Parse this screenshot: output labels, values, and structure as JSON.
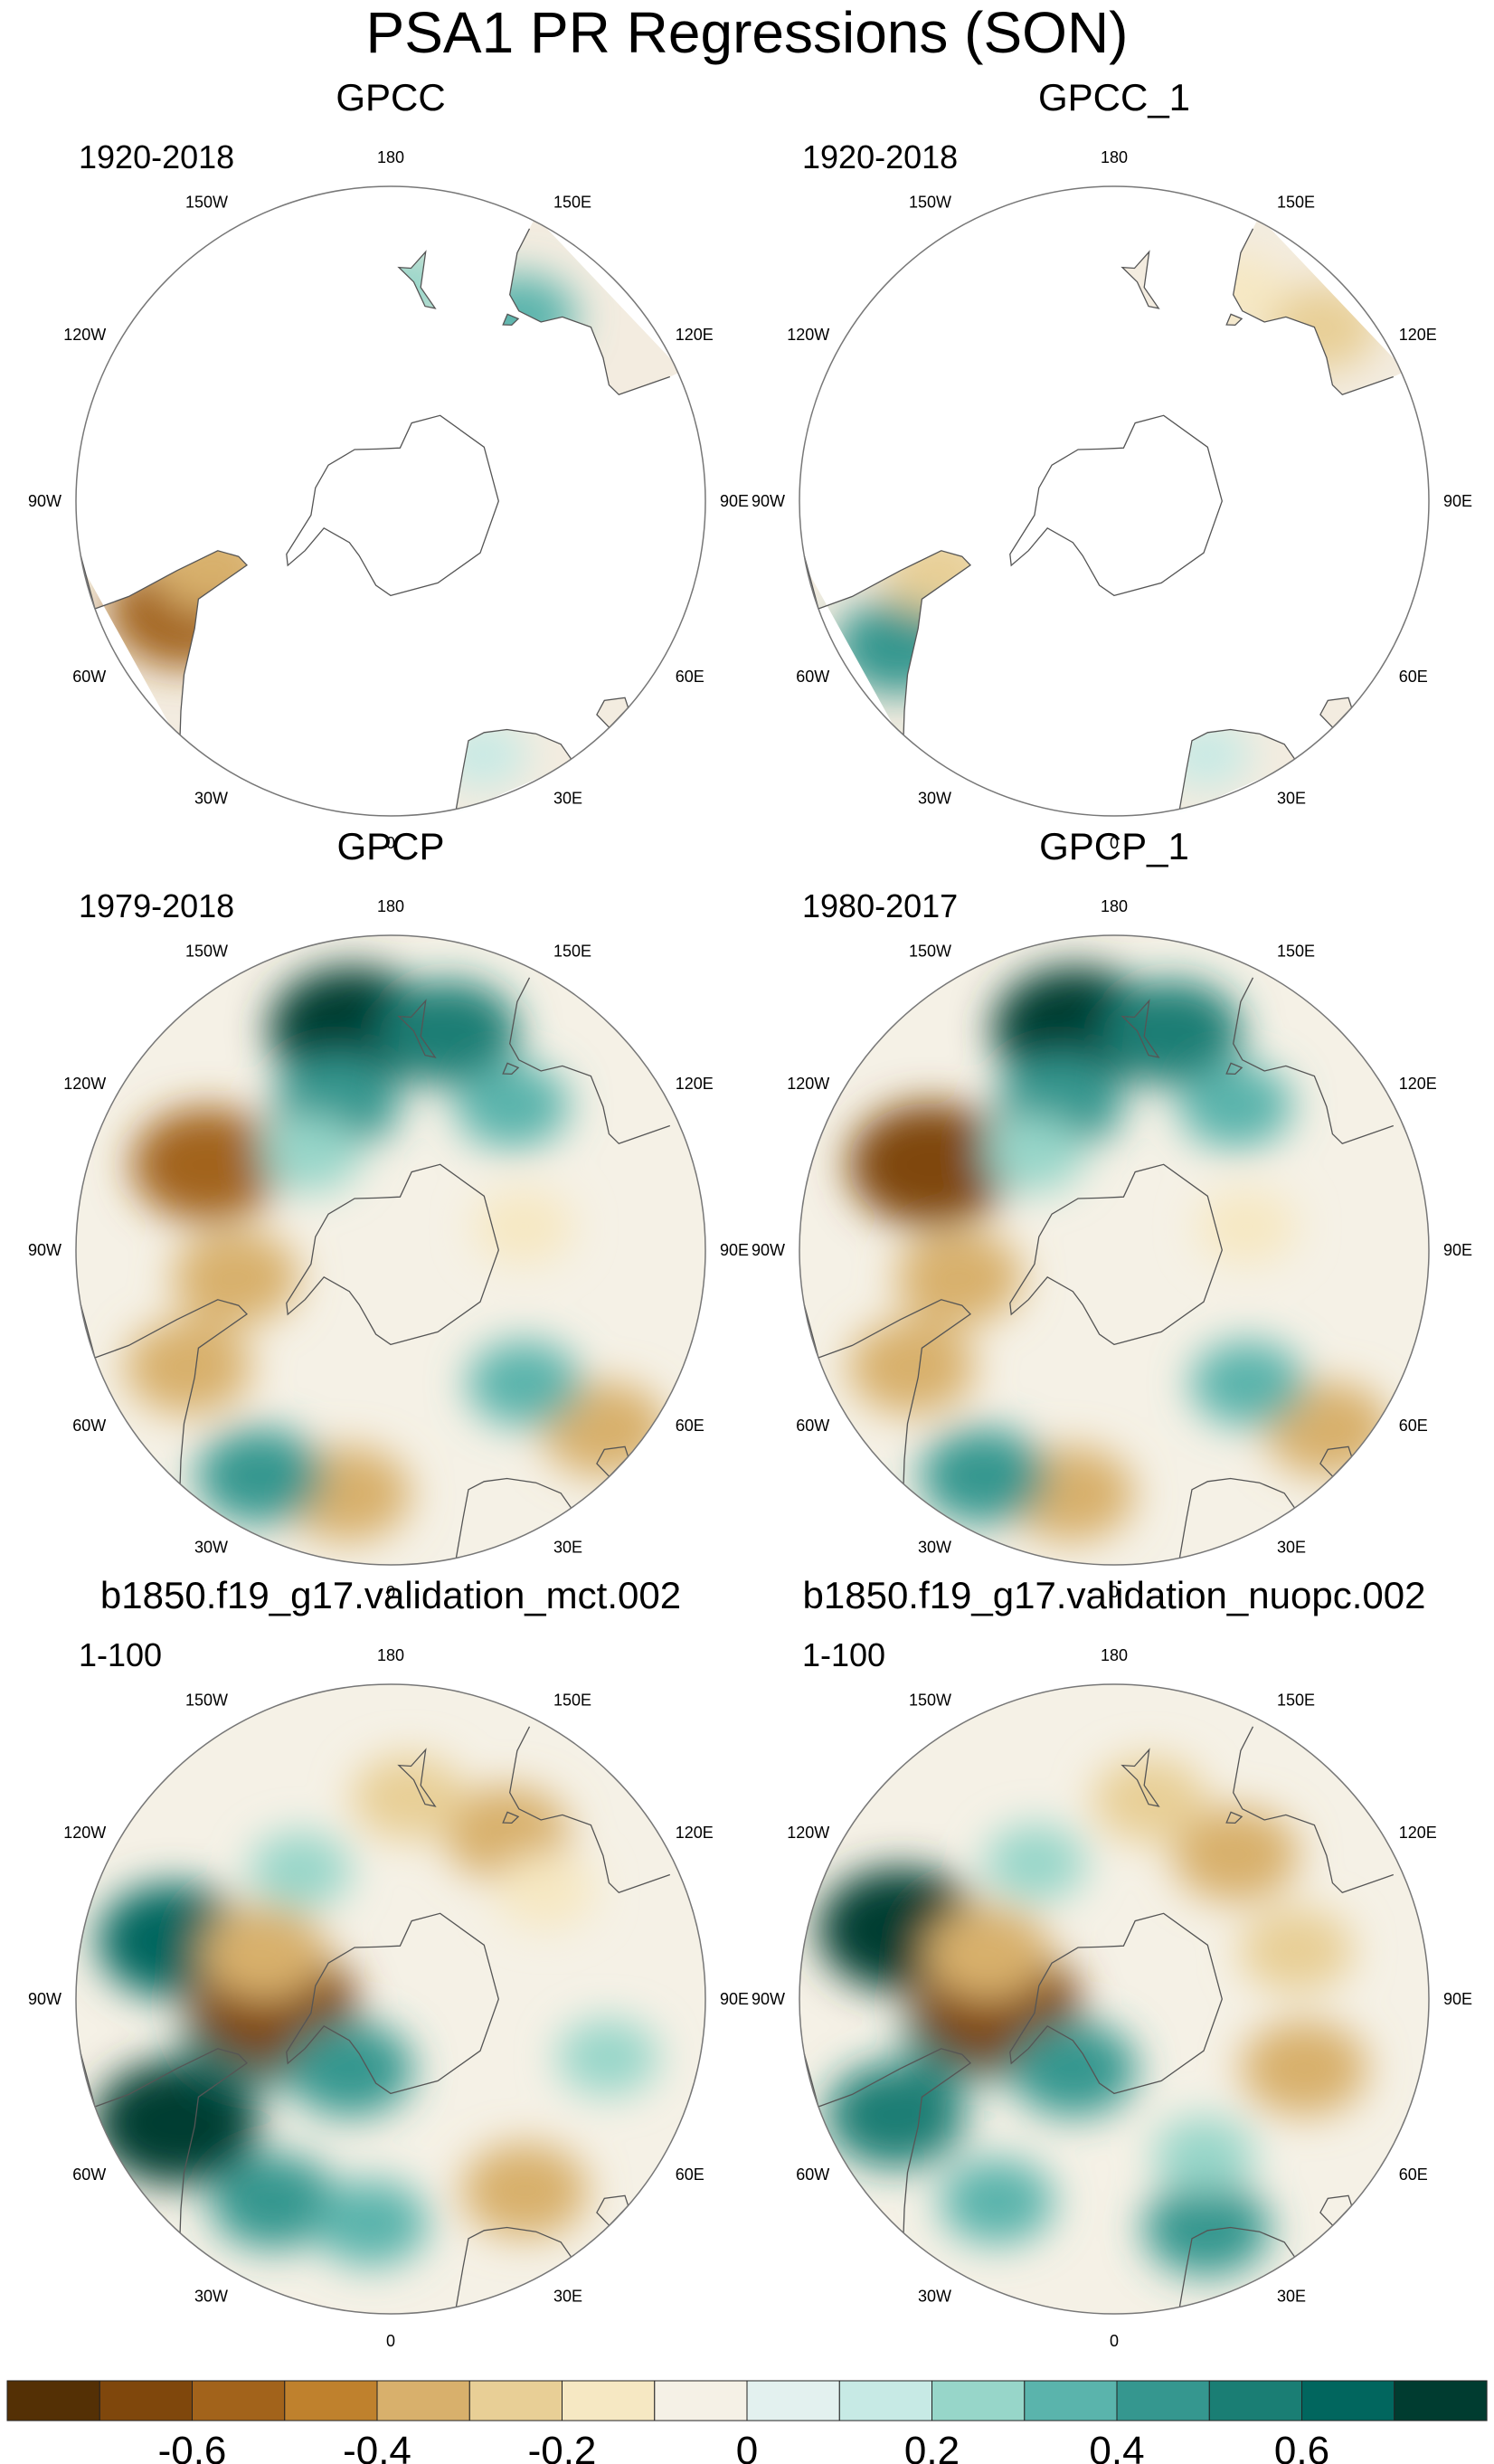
{
  "chart_data": {
    "type": "heatmap",
    "title": "PSA1 PR Regressions (SON)",
    "projection": "south-polar-stereographic",
    "longitude_labels": [
      "0",
      "30E",
      "60E",
      "90E",
      "120E",
      "150E",
      "180",
      "150W",
      "120W",
      "90W",
      "60W",
      "30W"
    ],
    "panels": [
      {
        "name": "GPCC",
        "period": "1920-2018",
        "coverage": "land-only",
        "features": [
          {
            "lon": -62,
            "lat": -38,
            "value": -0.6
          },
          {
            "lon": -70,
            "lat": -48,
            "value": -0.4
          },
          {
            "lon": 145,
            "lat": -40,
            "value": 0.3
          },
          {
            "lon": 175,
            "lat": -42,
            "value": 0.2
          },
          {
            "lon": 20,
            "lat": -30,
            "value": 0.1
          }
        ]
      },
      {
        "name": "GPCC_1",
        "period": "1920-2018",
        "coverage": "land-only",
        "features": [
          {
            "lon": -56,
            "lat": -32,
            "value": 0.4
          },
          {
            "lon": -68,
            "lat": -48,
            "value": -0.3
          },
          {
            "lon": 130,
            "lat": -30,
            "value": -0.3
          },
          {
            "lon": 150,
            "lat": -36,
            "value": -0.2
          },
          {
            "lon": 20,
            "lat": -30,
            "value": 0.1
          }
        ]
      },
      {
        "name": "GPCP",
        "period": "1979-2018",
        "coverage": "global",
        "features": [
          {
            "lon": -115,
            "lat": -45,
            "value": -0.6
          },
          {
            "lon": -60,
            "lat": -38,
            "value": -0.4
          },
          {
            "lon": -10,
            "lat": -35,
            "value": -0.4
          },
          {
            "lon": 50,
            "lat": -28,
            "value": -0.4
          },
          {
            "lon": -80,
            "lat": -55,
            "value": -0.4
          },
          {
            "lon": -170,
            "lat": -40,
            "value": 0.7
          },
          {
            "lon": 165,
            "lat": -40,
            "value": 0.5
          },
          {
            "lon": -160,
            "lat": -55,
            "value": 0.4
          },
          {
            "lon": 140,
            "lat": -48,
            "value": 0.3
          },
          {
            "lon": -30,
            "lat": -32,
            "value": 0.4
          },
          {
            "lon": 45,
            "lat": -48,
            "value": 0.3
          },
          {
            "lon": 100,
            "lat": -60,
            "value": -0.2
          },
          {
            "lon": -140,
            "lat": -62,
            "value": 0.2
          }
        ]
      },
      {
        "name": "GPCP_1",
        "period": "1980-2017",
        "coverage": "global",
        "features": [
          {
            "lon": -115,
            "lat": -45,
            "value": -0.7
          },
          {
            "lon": -60,
            "lat": -38,
            "value": -0.4
          },
          {
            "lon": -10,
            "lat": -35,
            "value": -0.4
          },
          {
            "lon": 50,
            "lat": -28,
            "value": -0.4
          },
          {
            "lon": -80,
            "lat": -55,
            "value": -0.4
          },
          {
            "lon": -170,
            "lat": -40,
            "value": 0.7
          },
          {
            "lon": 165,
            "lat": -40,
            "value": 0.5
          },
          {
            "lon": -160,
            "lat": -55,
            "value": 0.4
          },
          {
            "lon": 140,
            "lat": -48,
            "value": 0.3
          },
          {
            "lon": -30,
            "lat": -32,
            "value": 0.4
          },
          {
            "lon": 45,
            "lat": -48,
            "value": 0.3
          },
          {
            "lon": 100,
            "lat": -60,
            "value": -0.2
          },
          {
            "lon": -140,
            "lat": -62,
            "value": 0.2
          }
        ]
      },
      {
        "name": "b1850.f19_g17.validation_mct.002",
        "period": "1-100",
        "coverage": "global",
        "features": [
          {
            "lon": -60,
            "lat": -35,
            "value": 0.7
          },
          {
            "lon": -105,
            "lat": -40,
            "value": 0.6
          },
          {
            "lon": -75,
            "lat": -58,
            "value": 0.5
          },
          {
            "lon": -30,
            "lat": -38,
            "value": 0.4
          },
          {
            "lon": -5,
            "lat": -40,
            "value": 0.3
          },
          {
            "lon": -88,
            "lat": -64,
            "value": -0.7
          },
          {
            "lon": -110,
            "lat": -60,
            "value": -0.4
          },
          {
            "lon": 35,
            "lat": -38,
            "value": -0.4
          },
          {
            "lon": 145,
            "lat": -45,
            "value": -0.4
          },
          {
            "lon": 175,
            "lat": -45,
            "value": -0.3
          },
          {
            "lon": 125,
            "lat": -48,
            "value": -0.2
          },
          {
            "lon": -30,
            "lat": -72,
            "value": 0.4
          },
          {
            "lon": 75,
            "lat": -40,
            "value": 0.2
          },
          {
            "lon": -145,
            "lat": -55,
            "value": 0.2
          }
        ]
      },
      {
        "name": "b1850.f19_g17.validation_nuopc.002",
        "period": "1-100",
        "coverage": "global",
        "features": [
          {
            "lon": -108,
            "lat": -40,
            "value": 0.7
          },
          {
            "lon": -62,
            "lat": -35,
            "value": 0.5
          },
          {
            "lon": -78,
            "lat": -58,
            "value": 0.5
          },
          {
            "lon": 22,
            "lat": -35,
            "value": 0.4
          },
          {
            "lon": -30,
            "lat": -38,
            "value": 0.3
          },
          {
            "lon": -88,
            "lat": -64,
            "value": -0.7
          },
          {
            "lon": -110,
            "lat": -60,
            "value": -0.4
          },
          {
            "lon": 70,
            "lat": -45,
            "value": -0.4
          },
          {
            "lon": 105,
            "lat": -48,
            "value": -0.3
          },
          {
            "lon": 140,
            "lat": -48,
            "value": -0.4
          },
          {
            "lon": 170,
            "lat": -45,
            "value": -0.3
          },
          {
            "lon": -30,
            "lat": -72,
            "value": 0.4
          },
          {
            "lon": 30,
            "lat": -50,
            "value": 0.2
          },
          {
            "lon": -150,
            "lat": -55,
            "value": 0.2
          }
        ]
      }
    ],
    "colorbar": {
      "levels": [
        -0.7,
        -0.6,
        -0.5,
        -0.4,
        -0.3,
        -0.2,
        -0.1,
        0,
        0.1,
        0.2,
        0.3,
        0.4,
        0.5,
        0.6,
        0.7
      ],
      "tick_labels": [
        "-0.6",
        "-0.4",
        "-0.2",
        "0",
        "0.2",
        "0.4",
        "0.6"
      ],
      "tick_values": [
        -0.6,
        -0.4,
        -0.2,
        0,
        0.2,
        0.4,
        0.6
      ],
      "colors": [
        "#543005",
        "#7f470c",
        "#a2631b",
        "#bf812d",
        "#d8b06c",
        "#e8cf96",
        "#f6e8c3",
        "#f5f1e6",
        "#e3f1ef",
        "#c7eae5",
        "#97d6c9",
        "#5ab4ac",
        "#35978f",
        "#1a7e74",
        "#01665e",
        "#003c30"
      ]
    }
  }
}
